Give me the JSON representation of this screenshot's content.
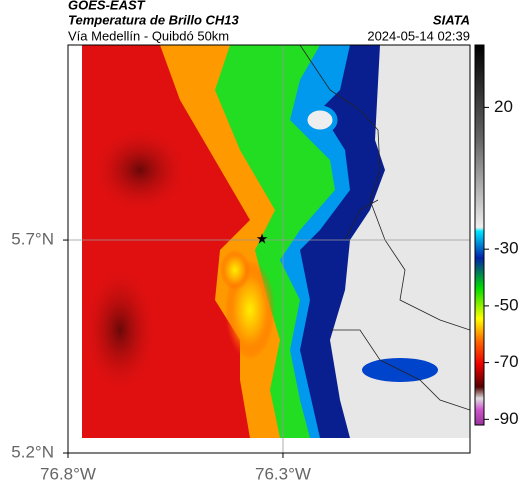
{
  "header": {
    "source": "GOES-EAST",
    "product": "Temperatura de Brillo CH13",
    "agency": "SIATA",
    "route": "Vía Medellín - Quibdó 50km",
    "timestamp": "2024-05-14 02:39"
  },
  "map": {
    "xlim": [
      -76.8,
      -75.865
    ],
    "ylim": [
      5.2,
      6.158
    ],
    "xticks": [
      {
        "value": -76.8,
        "label": "76.8°W"
      },
      {
        "value": -76.3,
        "label": "76.3°W"
      }
    ],
    "yticks": [
      {
        "value": 5.2,
        "label": "5.2°N"
      },
      {
        "value": 5.7,
        "label": "5.7°N"
      }
    ]
  },
  "colorbar": {
    "lim": [
      -92,
      42
    ],
    "ticks": [
      20,
      -30,
      -50,
      -70,
      -90
    ]
  }
}
